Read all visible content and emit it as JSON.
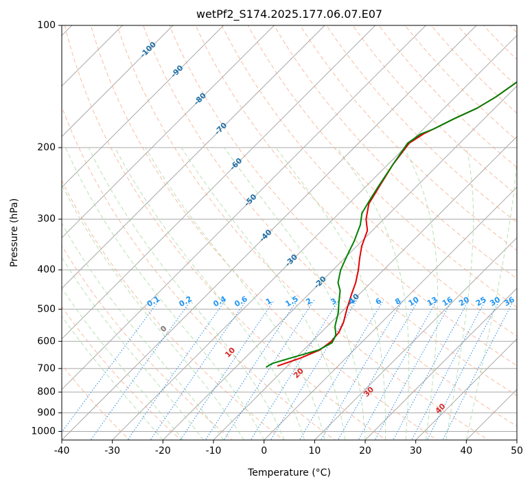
{
  "chart_data": {
    "type": "line",
    "title": "wetPf2_S174.2025.177.06.07.E07",
    "xlabel": "Temperature (°C)",
    "ylabel": "Pressure (hPa)",
    "xlim": [
      -40,
      50
    ],
    "ylim": [
      1050,
      100
    ],
    "y_scale": "log",
    "grid": true,
    "x_ticks": [
      -40,
      -30,
      -20,
      -10,
      0,
      10,
      20,
      30,
      40,
      50
    ],
    "y_ticks": [
      100,
      200,
      300,
      400,
      500,
      600,
      700,
      800,
      900,
      1000
    ],
    "isotherm_labels": [
      "-100",
      "-90",
      "-80",
      "-70",
      "-60",
      "-50",
      "-40",
      "-30",
      "-20",
      "-10"
    ],
    "mixing_ratio_labels": [
      "0.1",
      "0.2",
      "0.4",
      "0.6",
      "1",
      "1.5",
      "2",
      "3",
      "4",
      "6",
      "8",
      "10",
      "13",
      "16",
      "20",
      "25",
      "30",
      "36"
    ],
    "dry_adiabat_labels": [
      "0",
      "10",
      "20",
      "30",
      "40"
    ],
    "colors": {
      "temperature": "#e00000",
      "dewpoint": "#008000",
      "isotherm": "#a8a8a8",
      "isotherm_label": "#1f6fa8",
      "dry_adiabat": "#f4a582",
      "moist_adiabat": "#a6d8a0",
      "mixing_ratio": "#1e88e5",
      "mixing_label": "#2196f3",
      "dry_label": "#d62728",
      "zero_label": "#7f7f7f"
    },
    "series": [
      {
        "color_key": "temperature",
        "points": [
          [
            -12,
            690
          ],
          [
            -9,
            660
          ],
          [
            -6.8,
            630
          ],
          [
            -6.2,
            600
          ],
          [
            -6.5,
            570
          ],
          [
            -7.5,
            540
          ],
          [
            -9.5,
            500
          ],
          [
            -11.5,
            460
          ],
          [
            -13,
            430
          ],
          [
            -15,
            400
          ],
          [
            -17,
            375
          ],
          [
            -19,
            350
          ],
          [
            -21,
            320
          ],
          [
            -23.5,
            300
          ],
          [
            -26,
            275
          ],
          [
            -27.3,
            250
          ],
          [
            -29,
            220
          ],
          [
            -30,
            195
          ],
          [
            -29,
            185
          ],
          [
            -28,
            180
          ],
          [
            -26,
            170
          ],
          [
            -23.5,
            160
          ],
          [
            -22,
            150
          ],
          [
            -21,
            140
          ],
          [
            -20,
            130
          ],
          [
            -19,
            120
          ],
          [
            -18.5,
            112
          ],
          [
            -19.5,
            110
          ],
          [
            -18.5,
            105
          ],
          [
            -18,
            100
          ]
        ]
      },
      {
        "color_key": "dewpoint",
        "points": [
          [
            -14,
            695
          ],
          [
            -13.5,
            680
          ],
          [
            -11,
            660
          ],
          [
            -7,
            630
          ],
          [
            -5.8,
            605
          ],
          [
            -6.5,
            580
          ],
          [
            -8.5,
            550
          ],
          [
            -10.5,
            510
          ],
          [
            -12.5,
            480
          ],
          [
            -14.5,
            450
          ],
          [
            -16.5,
            430
          ],
          [
            -18.5,
            400
          ],
          [
            -20,
            370
          ],
          [
            -21.5,
            340
          ],
          [
            -23.5,
            310
          ],
          [
            -25.5,
            290
          ],
          [
            -26.5,
            270
          ],
          [
            -27.5,
            250
          ],
          [
            -29,
            220
          ],
          [
            -30.3,
            195
          ],
          [
            -29.5,
            185
          ],
          [
            -28,
            180
          ],
          [
            -26,
            170
          ],
          [
            -23.5,
            160
          ],
          [
            -22,
            150
          ],
          [
            -21,
            140
          ],
          [
            -20,
            130
          ],
          [
            -19.5,
            120
          ],
          [
            -19.5,
            112
          ],
          [
            -19,
            110
          ],
          [
            -18.5,
            105
          ],
          [
            -18.5,
            100
          ]
        ]
      }
    ]
  }
}
